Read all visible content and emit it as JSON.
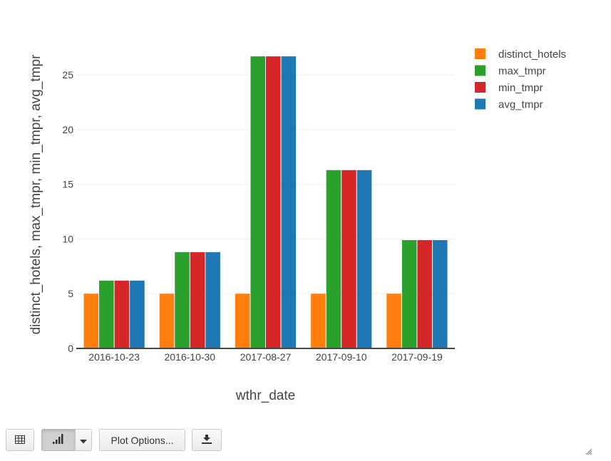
{
  "chart_data": {
    "type": "bar",
    "xlabel": "wthr_date",
    "ylabel": "distinct_hotels, max_tmpr, min_tmpr, avg_tmpr",
    "categories": [
      "2016-10-23",
      "2016-10-30",
      "2017-08-27",
      "2017-09-10",
      "2017-09-19"
    ],
    "ylim": [
      0,
      28.4
    ],
    "yticks": [
      0,
      5,
      10,
      15,
      20,
      25
    ],
    "grid": true,
    "legend_position": "top-right",
    "series": [
      {
        "name": "distinct_hotels",
        "color": "#ff7f0e",
        "values": [
          5,
          5,
          5,
          5,
          5
        ]
      },
      {
        "name": "max_tmpr",
        "color": "#2ca02c",
        "values": [
          6.2,
          8.8,
          26.7,
          16.3,
          9.9
        ]
      },
      {
        "name": "min_tmpr",
        "color": "#d62728",
        "values": [
          6.2,
          8.8,
          26.7,
          16.3,
          9.9
        ]
      },
      {
        "name": "avg_tmpr",
        "color": "#1f77b4",
        "values": [
          6.2,
          8.8,
          26.7,
          16.3,
          9.9
        ]
      }
    ]
  },
  "toolbar": {
    "table_icon": "table-icon",
    "chart_icon": "bar-chart-icon",
    "dropdown_icon": "caret-down-icon",
    "plot_options_label": "Plot Options...",
    "download_icon": "download-icon",
    "resize_icon": "resize-grip-icon"
  }
}
